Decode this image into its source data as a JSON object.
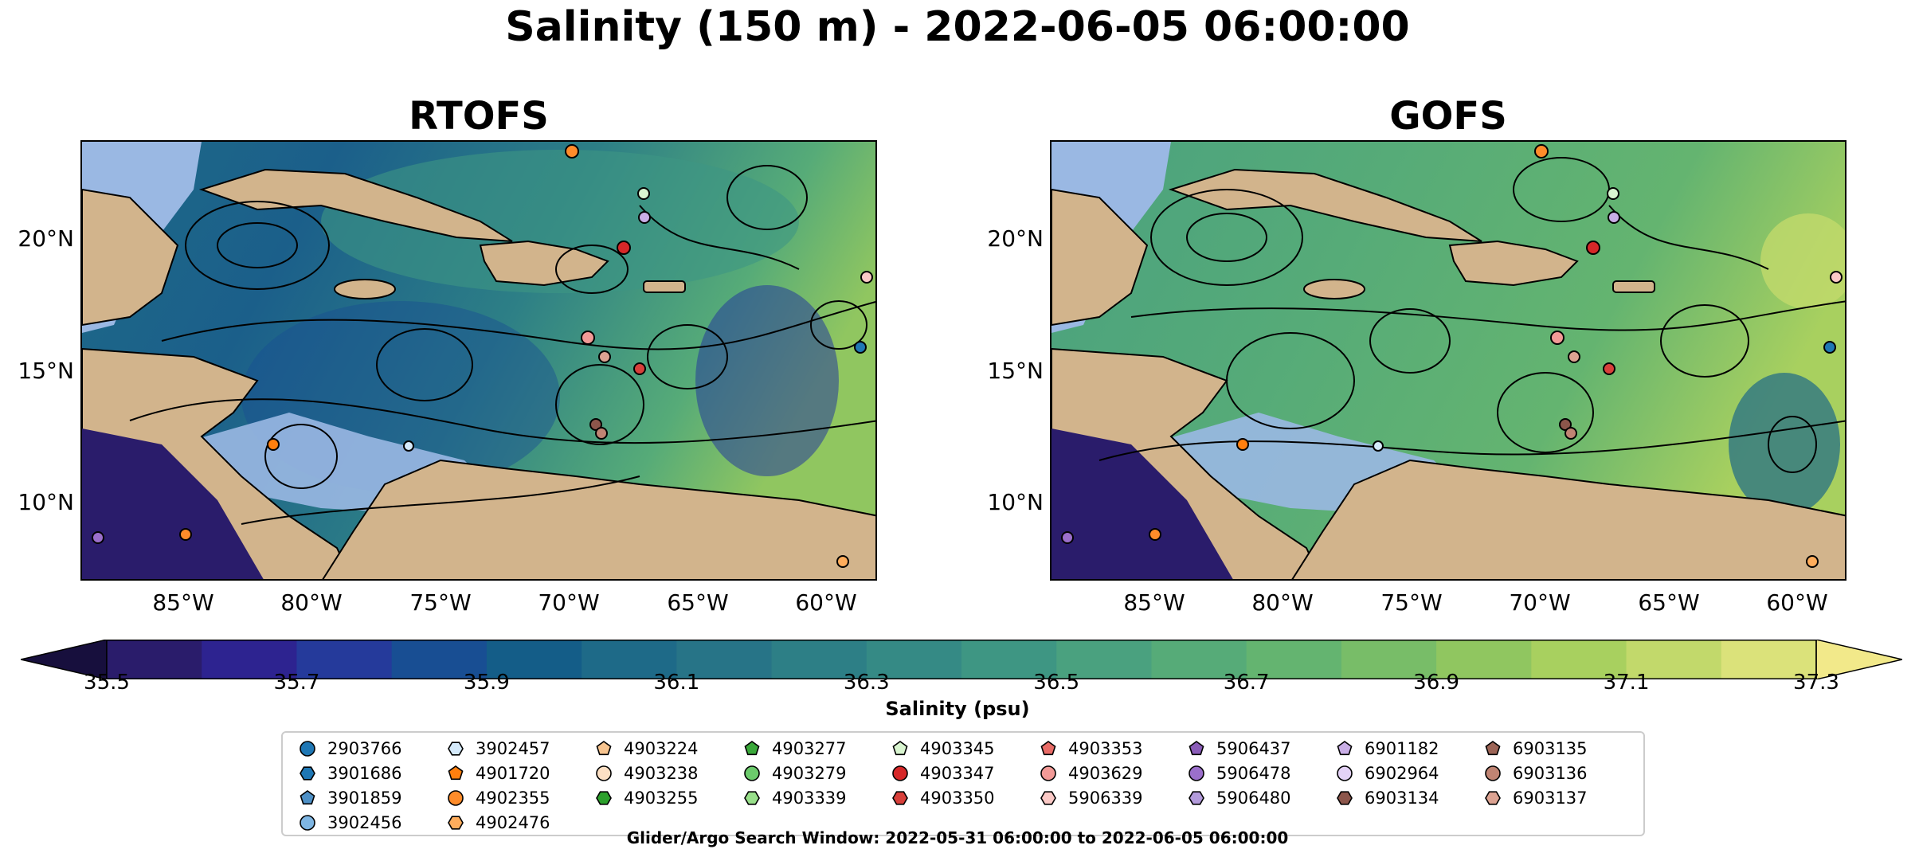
{
  "title": "Salinity (150 m) - 2022-06-05 06:00:00",
  "panels": [
    {
      "title": "RTOFS"
    },
    {
      "title": "GOFS"
    }
  ],
  "axes": {
    "x_ticks": [
      "85°W",
      "80°W",
      "75°W",
      "70°W",
      "65°W",
      "60°W"
    ],
    "y_ticks": [
      "20°N",
      "15°N",
      "10°N"
    ],
    "lon_range": [
      -89,
      -58
    ],
    "lat_range": [
      7,
      24
    ]
  },
  "colorbar": {
    "label": "Salinity (psu)",
    "ticks": [
      "35.5",
      "35.7",
      "35.9",
      "36.1",
      "36.3",
      "36.5",
      "36.7",
      "36.9",
      "37.1",
      "37.3"
    ],
    "range": [
      35.5,
      37.3
    ],
    "colors": [
      "#2a1c6b",
      "#2d2390",
      "#253a9b",
      "#184e93",
      "#145d88",
      "#1e6a88",
      "#277487",
      "#2d7f86",
      "#358a85",
      "#3e9683",
      "#4aa17f",
      "#56ab78",
      "#64b470",
      "#78bd68",
      "#90c660",
      "#a8d05f",
      "#c2d96b",
      "#dbe27a"
    ]
  },
  "legend": {
    "columns": [
      [
        {
          "id": "2903766",
          "shape": "circle",
          "color": "#1f77b4"
        },
        {
          "id": "3901686",
          "shape": "hexagon",
          "color": "#1f77b4"
        },
        {
          "id": "3901859",
          "shape": "pentagon",
          "color": "#4e90c6"
        },
        {
          "id": "3902456",
          "shape": "circle",
          "color": "#7fb6e3"
        }
      ],
      [
        {
          "id": "3902457",
          "shape": "hexagon",
          "color": "#d4e9fa"
        },
        {
          "id": "4901720",
          "shape": "pentagon",
          "color": "#ff7f0e"
        },
        {
          "id": "4902355",
          "shape": "circle",
          "color": "#ff8c2a"
        },
        {
          "id": "4902476",
          "shape": "hexagon",
          "color": "#ffad5c"
        }
      ],
      [
        {
          "id": "4903224",
          "shape": "pentagon",
          "color": "#f7c48f"
        },
        {
          "id": "4903238",
          "shape": "circle",
          "color": "#fde0c4"
        },
        {
          "id": "4903255",
          "shape": "hexagon",
          "color": "#2ca02c"
        }
      ],
      [
        {
          "id": "4903277",
          "shape": "pentagon",
          "color": "#3aa83a"
        },
        {
          "id": "4903279",
          "shape": "circle",
          "color": "#6ccb6c"
        },
        {
          "id": "4903339",
          "shape": "hexagon",
          "color": "#98df8a"
        }
      ],
      [
        {
          "id": "4903345",
          "shape": "pentagon",
          "color": "#d9f5d0"
        },
        {
          "id": "4903347",
          "shape": "circle",
          "color": "#d62728"
        },
        {
          "id": "4903350",
          "shape": "hexagon",
          "color": "#d8403b"
        }
      ],
      [
        {
          "id": "4903353",
          "shape": "pentagon",
          "color": "#e86b66"
        },
        {
          "id": "4903629",
          "shape": "circle",
          "color": "#f29a97"
        },
        {
          "id": "5906339",
          "shape": "hexagon",
          "color": "#fbc9c6"
        }
      ],
      [
        {
          "id": "5906437",
          "shape": "pentagon",
          "color": "#8a5cb8"
        },
        {
          "id": "5906478",
          "shape": "circle",
          "color": "#9b6fcb"
        },
        {
          "id": "5906480",
          "shape": "hexagon",
          "color": "#b39bdb"
        }
      ],
      [
        {
          "id": "6901182",
          "shape": "pentagon",
          "color": "#c9aee6"
        },
        {
          "id": "6902964",
          "shape": "circle",
          "color": "#e4d2f7"
        },
        {
          "id": "6903134",
          "shape": "hexagon",
          "color": "#8c564b"
        }
      ],
      [
        {
          "id": "6903135",
          "shape": "pentagon",
          "color": "#9c6456"
        },
        {
          "id": "6903136",
          "shape": "circle",
          "color": "#c08473"
        },
        {
          "id": "6903137",
          "shape": "hexagon",
          "color": "#dca392"
        }
      ]
    ]
  },
  "search_window": "Glider/Argo Search Window: 2022-05-31 06:00:00 to 2022-06-05 06:00:00",
  "colors": {
    "land": "#d2b48c",
    "shelf": "#9ab8e3"
  }
}
